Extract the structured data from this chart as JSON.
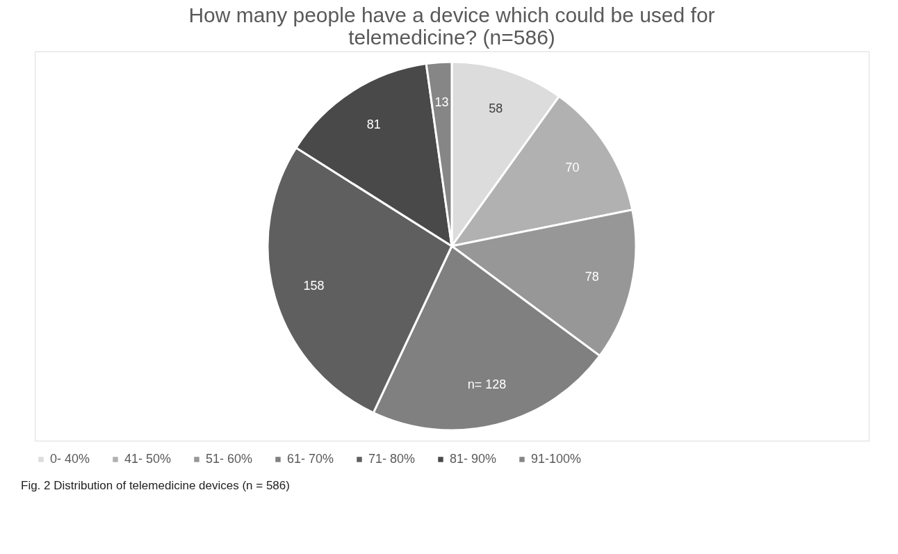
{
  "chart_data": {
    "type": "pie",
    "title": "How many people have a device which could be used for telemedicine? (n=586)",
    "categories": [
      "0-  40%",
      "41-  50%",
      "51-  60%",
      "61-  70%",
      "71-  80%",
      "81-  90%",
      "91-100%"
    ],
    "values": [
      58,
      70,
      78,
      128,
      158,
      81,
      13
    ],
    "colors": [
      "#dcdcdc",
      "#b1b1b1",
      "#979797",
      "#808080",
      "#5f5f5f",
      "#494949",
      "#868686"
    ],
    "value_labels": [
      "58",
      "70",
      "78",
      "n= 128",
      "158",
      "81",
      "13"
    ],
    "legend": "bottom",
    "annotations": [
      "Fig. 2 Distribution of telemedicine devices (n = 586)"
    ]
  }
}
